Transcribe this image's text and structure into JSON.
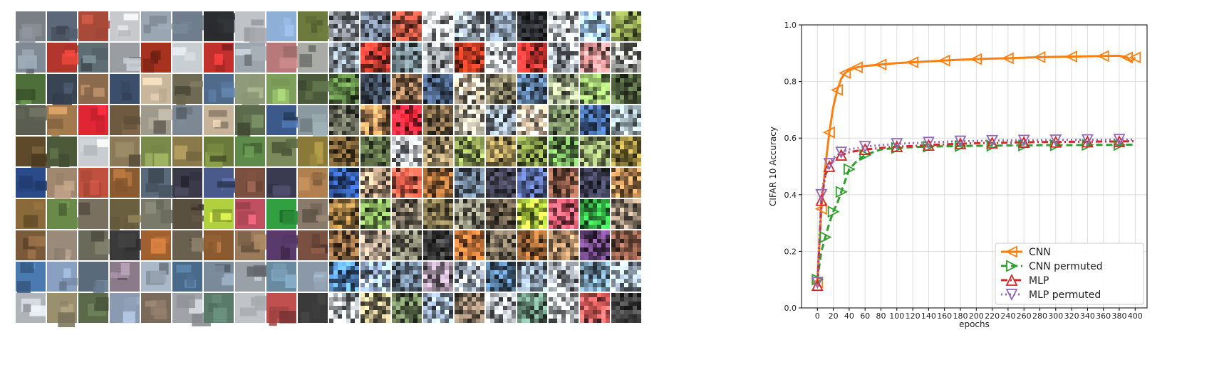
{
  "image_grid": {
    "rows": 10,
    "cols": 20,
    "left_half": "photos",
    "right_half": "permuted-pixel-noise",
    "row_colors": [
      [
        "#7a7f86",
        "#5d6878",
        "#a84a3a",
        "#c7c9cc",
        "#9aa7b3",
        "#6f7d8c",
        "#2a2c30",
        "#bfc3c7",
        "#8fb0d6",
        "#6c7a3e"
      ],
      [
        "#7f8a94",
        "#b3362e",
        "#5f6e74",
        "#9a9ea2",
        "#a7321f",
        "#c9ced3",
        "#c2302e",
        "#9ea6ad",
        "#b67a7a",
        "#a9aba6"
      ],
      [
        "#4e6e3a",
        "#3a4554",
        "#8b6a4e",
        "#3c4f6a",
        "#c9b79d",
        "#6f6a54",
        "#4f6a8a",
        "#8f9a7a",
        "#7ea05a",
        "#4a5a3a"
      ],
      [
        "#5a5d4f",
        "#a37a4e",
        "#e02535",
        "#6e5a40",
        "#a09a8c",
        "#7c8894",
        "#c7b29a",
        "#5c6b4c",
        "#3b5a8a",
        "#8a9aa0"
      ],
      [
        "#5e4a2a",
        "#4c5a3a",
        "#c9cdd2",
        "#8a7a5a",
        "#7a8a4a",
        "#8a7a4a",
        "#6a7a3a",
        "#5e8a4a",
        "#7a8a5a",
        "#8a7a3a"
      ],
      [
        "#2a4a8a",
        "#a08870",
        "#c05040",
        "#8a5a30",
        "#5a6a7a",
        "#3a3a4a",
        "#4a5a8a",
        "#7a5040",
        "#3a3a50",
        "#b08050"
      ],
      [
        "#8a6a3a",
        "#6a8a4a",
        "#7a7060",
        "#6a6040",
        "#7a7a6a",
        "#5a5040",
        "#b0d040",
        "#c05060",
        "#30a040",
        "#8a7a6a"
      ],
      [
        "#7a5a3a",
        "#9a8a7a",
        "#6a6a5a",
        "#3a3a3a",
        "#a06030",
        "#6a6050",
        "#8a5a30",
        "#9a7a5a",
        "#5a3a6a",
        "#7a5040"
      ],
      [
        "#4a7ab0",
        "#8aa0c0",
        "#5a6a7a",
        "#8a7a8a",
        "#aab8c8",
        "#4a6a8a",
        "#7a8a9a",
        "#9aa0a8",
        "#6a8aa0",
        "#8a98a8"
      ],
      [
        "#b0b4b8",
        "#9a9070",
        "#5a6a4a",
        "#8a9ab0",
        "#7a6a5a",
        "#a0a4a8",
        "#5a7a6a",
        "#c0c4c8",
        "#c05050",
        "#3a3a3a"
      ]
    ]
  },
  "chart_data": {
    "type": "line",
    "xlabel": "epochs",
    "ylabel": "CIFAR 10 Accuracy",
    "xlim": [
      -20,
      415
    ],
    "ylim": [
      0.0,
      1.0
    ],
    "xticks": [
      0,
      20,
      40,
      60,
      80,
      100,
      120,
      140,
      160,
      180,
      200,
      220,
      240,
      260,
      280,
      300,
      320,
      340,
      360,
      380,
      400
    ],
    "yticks": [
      0.0,
      0.2,
      0.4,
      0.6,
      0.8,
      1.0
    ],
    "ytick_labels": [
      "0.0",
      "0.2",
      "0.4",
      "0.6",
      "0.8",
      "1.0"
    ],
    "grid": true,
    "legend_position": "bottom-right",
    "series": [
      {
        "name": "CNN",
        "color": "#ff7f0e",
        "linestyle": "solid",
        "marker": "triangle-left",
        "x": [
          0,
          2,
          5,
          10,
          15,
          20,
          25,
          30,
          35,
          40,
          50,
          60,
          80,
          100,
          120,
          140,
          160,
          180,
          200,
          220,
          240,
          260,
          280,
          300,
          320,
          340,
          360,
          380,
          390,
          395,
          400
        ],
        "y": [
          0.09,
          0.2,
          0.35,
          0.5,
          0.62,
          0.71,
          0.77,
          0.81,
          0.83,
          0.84,
          0.85,
          0.855,
          0.86,
          0.865,
          0.868,
          0.871,
          0.874,
          0.877,
          0.879,
          0.881,
          0.882,
          0.884,
          0.886,
          0.887,
          0.888,
          0.889,
          0.89,
          0.891,
          0.885,
          0.87,
          0.885
        ]
      },
      {
        "name": "CNN permuted",
        "color": "#2ca02c",
        "linestyle": "dashed",
        "marker": "triangle-right",
        "x": [
          0,
          5,
          10,
          15,
          20,
          25,
          30,
          35,
          40,
          50,
          60,
          80,
          100,
          120,
          140,
          160,
          180,
          200,
          220,
          240,
          260,
          280,
          300,
          320,
          340,
          360,
          380,
          400
        ],
        "y": [
          0.1,
          0.2,
          0.25,
          0.3,
          0.34,
          0.37,
          0.41,
          0.45,
          0.49,
          0.52,
          0.54,
          0.56,
          0.565,
          0.568,
          0.57,
          0.571,
          0.572,
          0.573,
          0.573,
          0.574,
          0.574,
          0.575,
          0.575,
          0.575,
          0.576,
          0.576,
          0.576,
          0.577
        ]
      },
      {
        "name": "MLP",
        "color": "#d62728",
        "linestyle": "dashdot",
        "marker": "triangle-up",
        "x": [
          0,
          2,
          5,
          10,
          15,
          20,
          30,
          40,
          60,
          80,
          100,
          120,
          140,
          160,
          180,
          200,
          220,
          240,
          260,
          280,
          300,
          320,
          340,
          360,
          380,
          400
        ],
        "y": [
          0.08,
          0.2,
          0.38,
          0.47,
          0.5,
          0.52,
          0.54,
          0.55,
          0.56,
          0.565,
          0.57,
          0.572,
          0.575,
          0.578,
          0.58,
          0.582,
          0.583,
          0.584,
          0.585,
          0.586,
          0.586,
          0.587,
          0.587,
          0.588,
          0.588,
          0.589
        ]
      },
      {
        "name": "MLP permuted",
        "color": "#9467bd",
        "linestyle": "dotted",
        "marker": "triangle-down",
        "x": [
          0,
          2,
          5,
          10,
          15,
          20,
          30,
          40,
          60,
          80,
          100,
          120,
          140,
          160,
          180,
          200,
          220,
          240,
          260,
          280,
          300,
          320,
          340,
          360,
          380,
          400
        ],
        "y": [
          0.09,
          0.22,
          0.4,
          0.48,
          0.51,
          0.53,
          0.55,
          0.56,
          0.57,
          0.575,
          0.58,
          0.582,
          0.585,
          0.587,
          0.589,
          0.59,
          0.591,
          0.592,
          0.592,
          0.593,
          0.593,
          0.594,
          0.594,
          0.594,
          0.595,
          0.595
        ]
      }
    ]
  }
}
